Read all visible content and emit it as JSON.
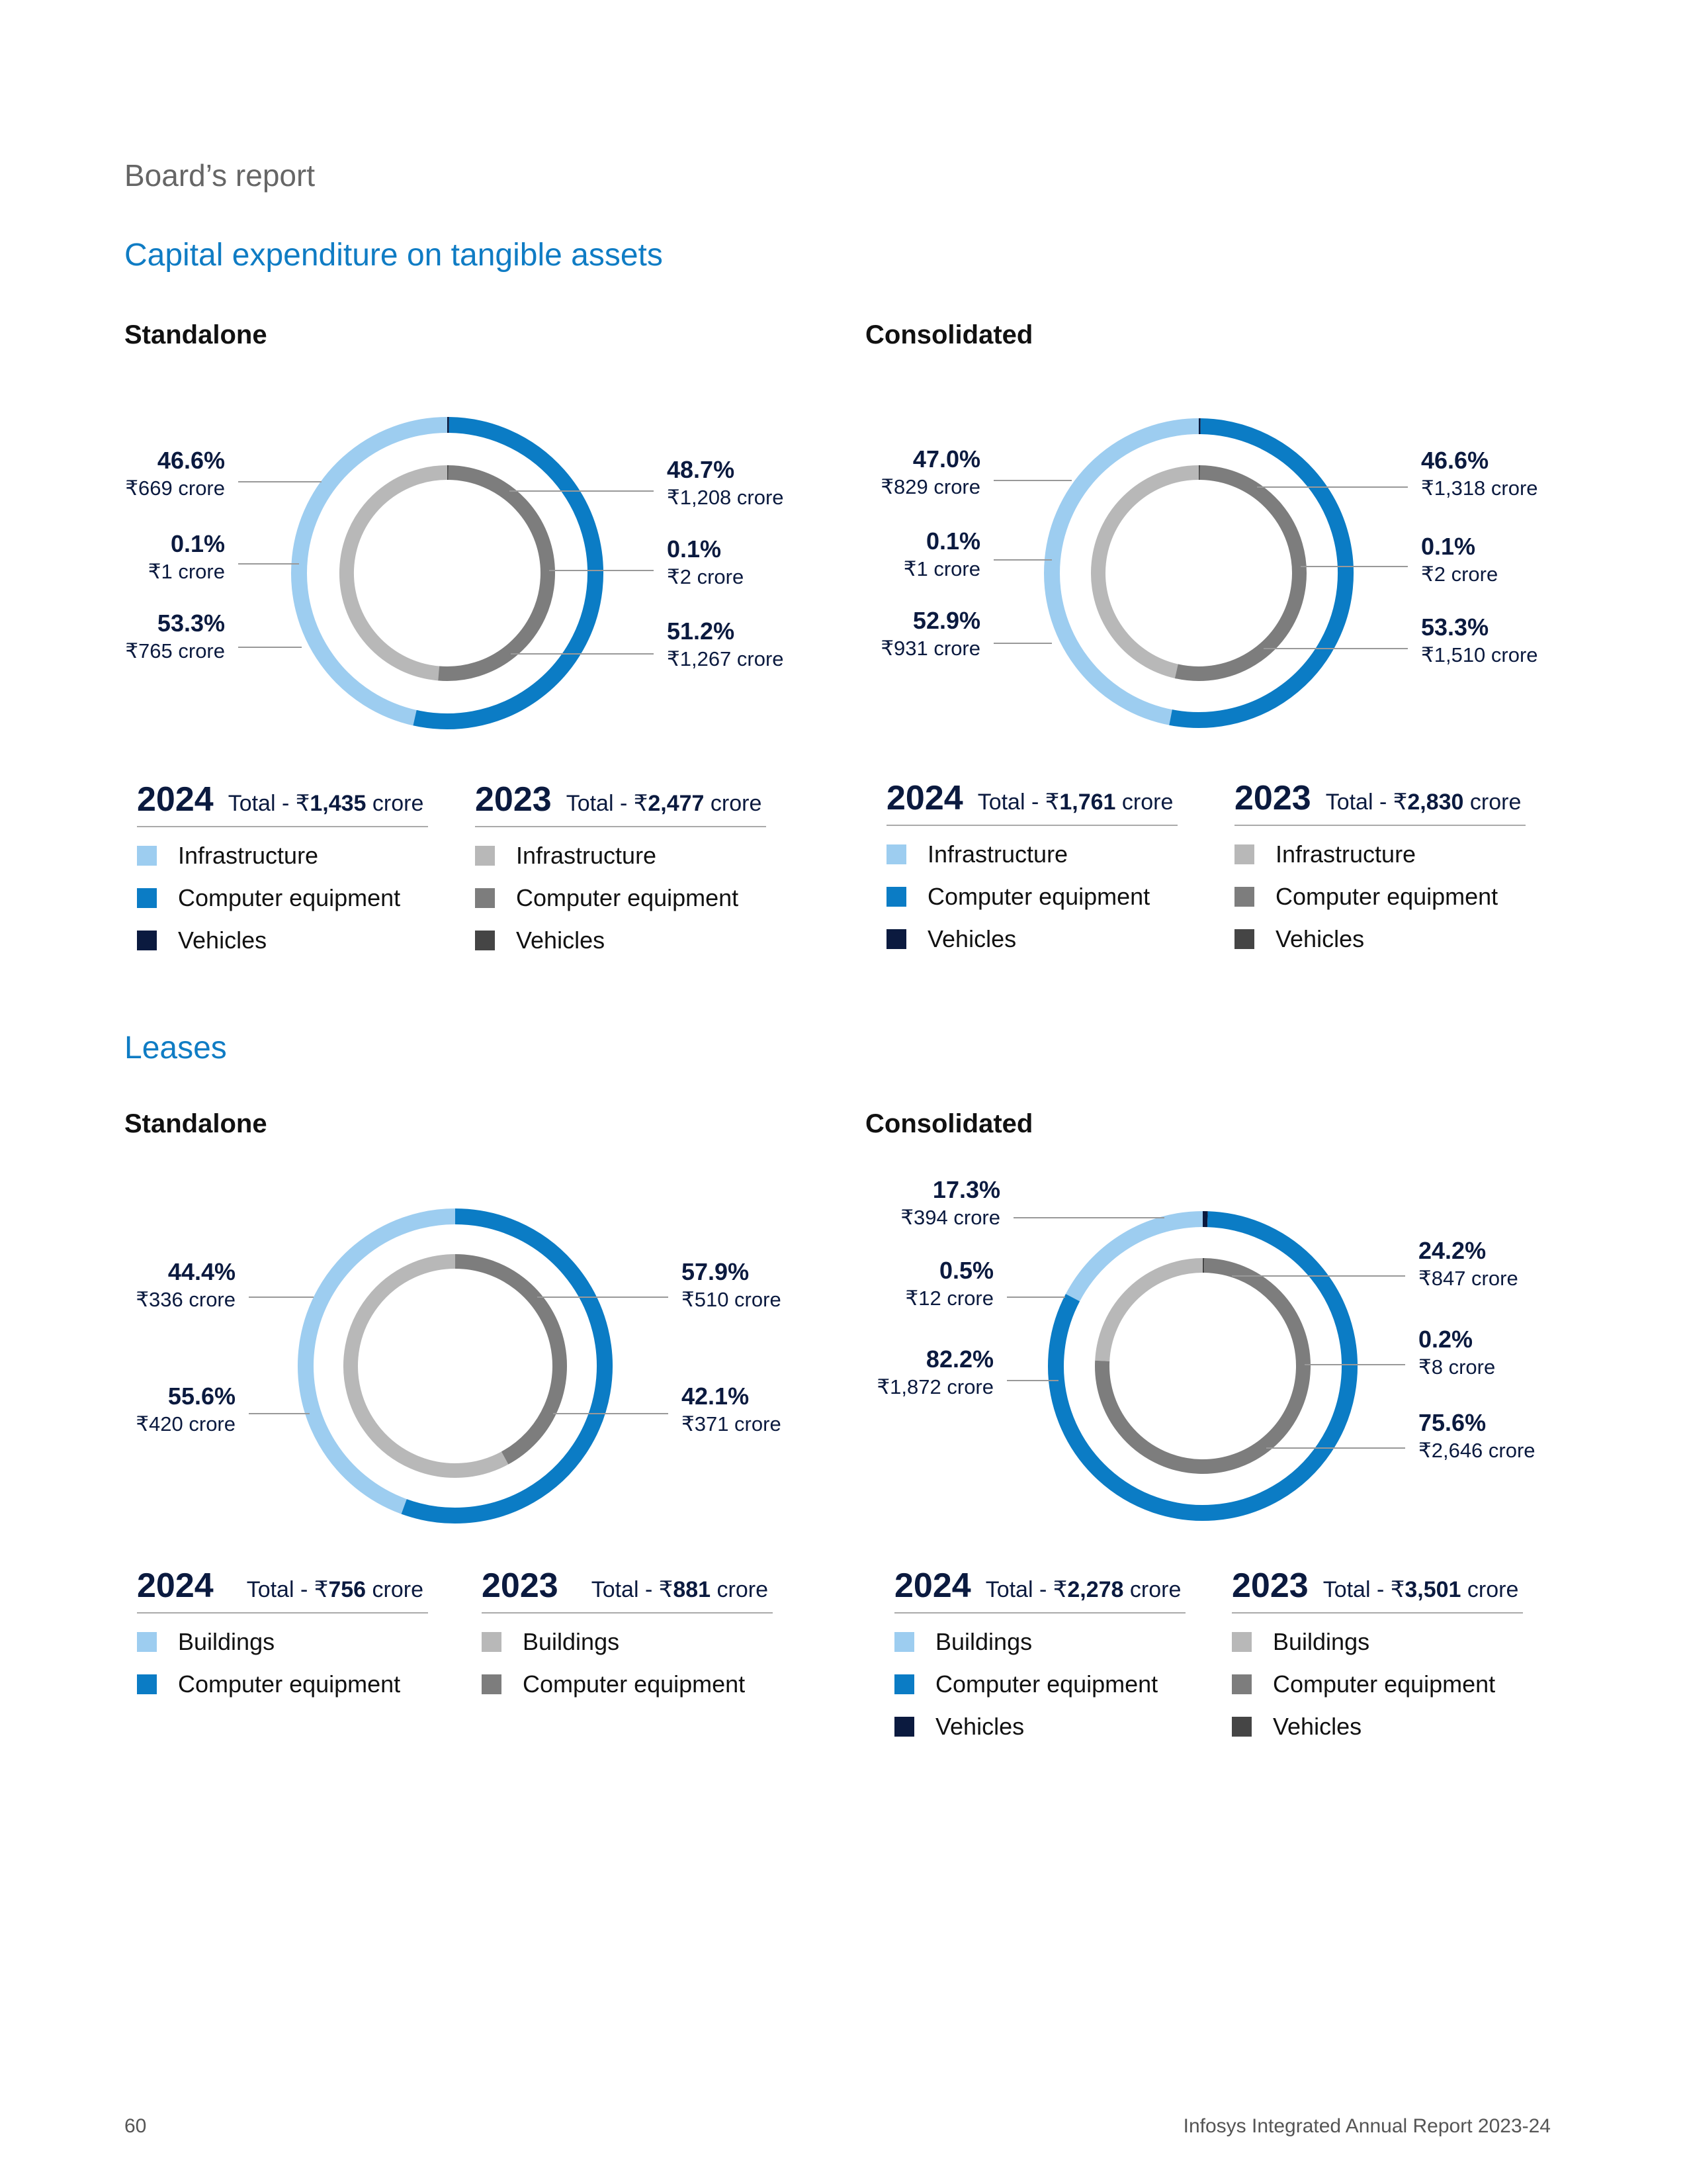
{
  "header": {
    "section": "Board’s report"
  },
  "colors": {
    "light_blue": "#9dcdf0",
    "blue": "#0b7cc5",
    "navy": "#0b1a3f",
    "light_gray": "#b8b8b8",
    "gray": "#7d7d7d",
    "dark_gray": "#454545"
  },
  "capex": {
    "title": "Capital expenditure on tangible assets",
    "standalone": {
      "label": "Standalone",
      "y2024": {
        "year": "2024",
        "total_prefix": "Total - ₹",
        "total_value": "1,435",
        "total_unit": "crore",
        "legend": [
          "Infrastructure",
          "Computer equipment",
          "Vehicles"
        ]
      },
      "y2023": {
        "year": "2023",
        "total_prefix": "Total - ₹",
        "total_value": "2,477",
        "total_unit": "crore",
        "legend": [
          "Infrastructure",
          "Computer equipment",
          "Vehicles"
        ]
      }
    },
    "consolidated": {
      "label": "Consolidated",
      "y2024": {
        "year": "2024",
        "total_prefix": "Total - ₹",
        "total_value": "1,761",
        "total_unit": "crore",
        "legend": [
          "Infrastructure",
          "Computer equipment",
          "Vehicles"
        ]
      },
      "y2023": {
        "year": "2023",
        "total_prefix": "Total - ₹",
        "total_value": "2,830",
        "total_unit": "crore",
        "legend": [
          "Infrastructure",
          "Computer equipment",
          "Vehicles"
        ]
      }
    }
  },
  "leases": {
    "title": "Leases",
    "standalone": {
      "label": "Standalone",
      "y2024": {
        "year": "2024",
        "total_prefix": "Total - ₹",
        "total_value": "756",
        "total_unit": "crore",
        "legend": [
          "Buildings",
          "Computer equipment"
        ]
      },
      "y2023": {
        "year": "2023",
        "total_prefix": "Total - ₹",
        "total_value": "881",
        "total_unit": "crore",
        "legend": [
          "Buildings",
          "Computer equipment"
        ]
      }
    },
    "consolidated": {
      "label": "Consolidated",
      "y2024": {
        "year": "2024",
        "total_prefix": "Total - ₹",
        "total_value": "2,278",
        "total_unit": "crore",
        "legend": [
          "Buildings",
          "Computer equipment",
          "Vehicles"
        ]
      },
      "y2023": {
        "year": "2023",
        "total_prefix": "Total - ₹",
        "total_value": "3,501",
        "total_unit": "crore",
        "legend": [
          "Buildings",
          "Computer equipment",
          "Vehicles"
        ]
      }
    }
  },
  "chart_data": [
    {
      "type": "pie",
      "title": "Capital expenditure on tangible assets – Standalone",
      "rings": [
        {
          "name": "2024",
          "categories": [
            "Infrastructure",
            "Vehicles",
            "Computer equipment"
          ],
          "values": [
            669,
            1,
            765
          ],
          "percents": [
            46.6,
            0.1,
            53.3
          ],
          "labels": [
            [
              "46.6%",
              "₹669 crore"
            ],
            [
              "0.1%",
              "₹1 crore"
            ],
            [
              "53.3%",
              "₹765 crore"
            ]
          ]
        },
        {
          "name": "2023",
          "categories": [
            "Infrastructure",
            "Vehicles",
            "Computer equipment"
          ],
          "values": [
            1208,
            2,
            1267
          ],
          "percents": [
            48.7,
            0.1,
            51.2
          ],
          "labels": [
            [
              "48.7%",
              "₹1,208 crore"
            ],
            [
              "0.1%",
              "₹2 crore"
            ],
            [
              "51.2%",
              "₹1,267 crore"
            ]
          ]
        }
      ]
    },
    {
      "type": "pie",
      "title": "Capital expenditure on tangible assets – Consolidated",
      "rings": [
        {
          "name": "2024",
          "categories": [
            "Infrastructure",
            "Vehicles",
            "Computer equipment"
          ],
          "values": [
            829,
            1,
            931
          ],
          "percents": [
            47.0,
            0.1,
            52.9
          ],
          "labels": [
            [
              "47.0%",
              "₹829 crore"
            ],
            [
              "0.1%",
              "₹1 crore"
            ],
            [
              "52.9%",
              "₹931 crore"
            ]
          ]
        },
        {
          "name": "2023",
          "categories": [
            "Infrastructure",
            "Vehicles",
            "Computer equipment"
          ],
          "values": [
            1318,
            2,
            1510
          ],
          "percents": [
            46.6,
            0.1,
            53.3
          ],
          "labels": [
            [
              "46.6%",
              "₹1,318 crore"
            ],
            [
              "0.1%",
              "₹2 crore"
            ],
            [
              "53.3%",
              "₹1,510 crore"
            ]
          ]
        }
      ]
    },
    {
      "type": "pie",
      "title": "Leases – Standalone",
      "rings": [
        {
          "name": "2024",
          "categories": [
            "Buildings",
            "Computer equipment"
          ],
          "values": [
            336,
            420
          ],
          "percents": [
            44.4,
            55.6
          ],
          "labels": [
            [
              "44.4%",
              "₹336 crore"
            ],
            [
              "55.6%",
              "₹420 crore"
            ]
          ]
        },
        {
          "name": "2023",
          "categories": [
            "Buildings",
            "Computer equipment"
          ],
          "values": [
            510,
            371
          ],
          "percents": [
            57.9,
            42.1
          ],
          "labels": [
            [
              "57.9%",
              "₹510 crore"
            ],
            [
              "42.1%",
              "₹371 crore"
            ]
          ]
        }
      ]
    },
    {
      "type": "pie",
      "title": "Leases – Consolidated",
      "rings": [
        {
          "name": "2024",
          "categories": [
            "Buildings",
            "Vehicles",
            "Computer equipment"
          ],
          "values": [
            394,
            12,
            1872
          ],
          "percents": [
            17.3,
            0.5,
            82.2
          ],
          "labels": [
            [
              "17.3%",
              "₹394 crore"
            ],
            [
              "0.5%",
              "₹12 crore"
            ],
            [
              "82.2%",
              "₹1,872 crore"
            ]
          ]
        },
        {
          "name": "2023",
          "categories": [
            "Buildings",
            "Vehicles",
            "Computer equipment"
          ],
          "values": [
            847,
            8,
            2646
          ],
          "percents": [
            24.2,
            0.2,
            75.6
          ],
          "labels": [
            [
              "24.2%",
              "₹847 crore"
            ],
            [
              "0.2%",
              "₹8 crore"
            ],
            [
              "75.6%",
              "₹2,646 crore"
            ]
          ]
        }
      ]
    }
  ],
  "footer": {
    "page_number": "60",
    "publication": "Infosys Integrated Annual Report 2023-24"
  }
}
